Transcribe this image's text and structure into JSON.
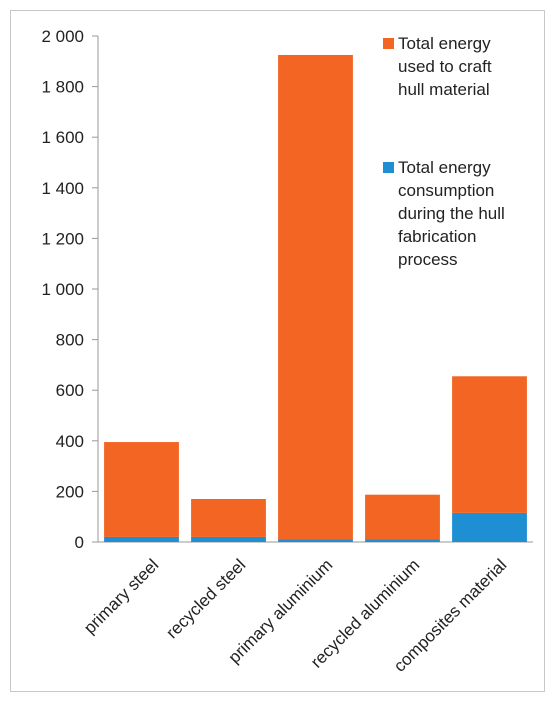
{
  "chart_data": {
    "type": "bar",
    "stacked": true,
    "categories": [
      "primary steel",
      "recycled steel",
      "primary aluminium",
      "recycled aluminium",
      "composites material"
    ],
    "series": [
      {
        "name": "Total energy consumption during the hull fabrication process",
        "color": "#1f8fd4",
        "values": [
          20,
          20,
          10,
          10,
          115
        ]
      },
      {
        "name": "Total energy used to craft hull material",
        "color": "#f26522",
        "values": [
          375,
          150,
          1915,
          177,
          540
        ]
      }
    ],
    "ylim": [
      0,
      2000
    ],
    "yticks": [
      "0",
      "200",
      "400",
      "600",
      "800",
      "1 000",
      "1 200",
      "1 400",
      "1 600",
      "1 800",
      "2 000"
    ],
    "grid": false,
    "legend_position": "top-right",
    "legend": [
      {
        "lines": [
          "Total energy",
          "used to craft",
          "hull material"
        ],
        "color": "#f26522"
      },
      {
        "lines": [
          "Total energy",
          "consumption",
          "during the hull",
          "fabrication",
          "process"
        ],
        "color": "#1f8fd4"
      }
    ]
  }
}
